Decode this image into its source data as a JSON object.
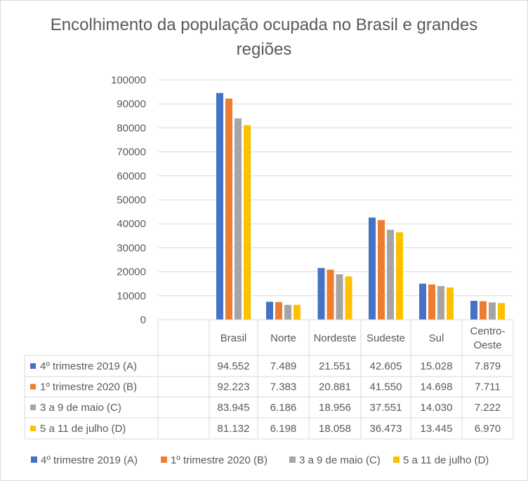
{
  "chart_data": {
    "type": "bar",
    "title": "Encolhimento da população ocupada no Brasil e grandes regiões",
    "categories": [
      "Brasil",
      "Norte",
      "Nordeste",
      "Sudeste",
      "Sul",
      "Centro-Oeste"
    ],
    "series": [
      {
        "name": "4º trimestre 2019 (A)",
        "color": "#4472c4",
        "values": [
          94552,
          7489,
          21551,
          42605,
          15028,
          7879
        ],
        "labels": [
          "94.552",
          "7.489",
          "21.551",
          "42.605",
          "15.028",
          "7.879"
        ]
      },
      {
        "name": "1º trimestre 2020 (B)",
        "color": "#ed7d31",
        "values": [
          92223,
          7383,
          20881,
          41550,
          14698,
          7711
        ],
        "labels": [
          "92.223",
          "7.383",
          "20.881",
          "41.550",
          "14.698",
          "7.711"
        ]
      },
      {
        "name": "3 a 9 de maio (C)",
        "color": "#a5a5a5",
        "values": [
          83945,
          6186,
          18956,
          37551,
          14030,
          7222
        ],
        "labels": [
          "83.945",
          "6.186",
          "18.956",
          "37.551",
          "14.030",
          "7.222"
        ]
      },
      {
        "name": "5 a 11 de julho (D)",
        "color": "#ffc000",
        "values": [
          81132,
          6198,
          18058,
          36473,
          13445,
          6970
        ],
        "labels": [
          "81.132",
          "6.198",
          "18.058",
          "36.473",
          "13.445",
          "6.970"
        ]
      }
    ],
    "y_ticks": [
      "0",
      "10000",
      "20000",
      "30000",
      "40000",
      "50000",
      "60000",
      "70000",
      "80000",
      "90000",
      "100000"
    ],
    "ylim": [
      0,
      100000
    ],
    "legend_position": "bottom",
    "data_table": true
  }
}
